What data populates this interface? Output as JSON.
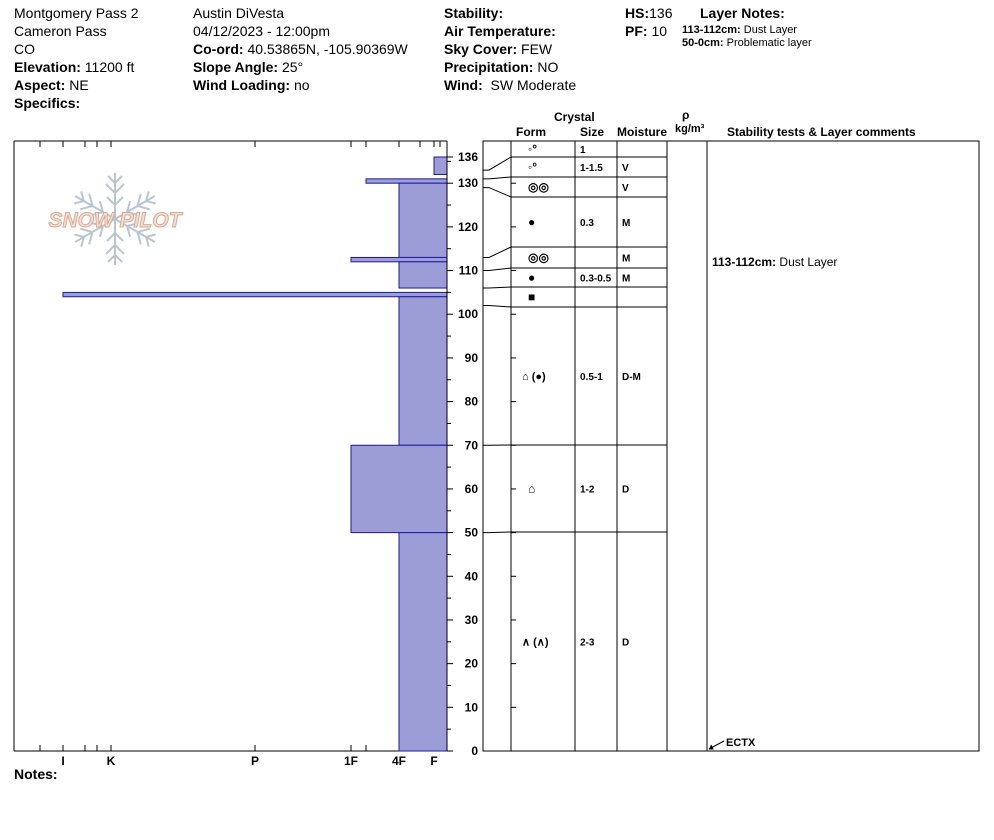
{
  "site": {
    "name": "Montgomery Pass 2",
    "area": "Cameron Pass",
    "state": "CO",
    "elevation_label": "Elevation:",
    "elevation": "11200 ft",
    "aspect_label": "Aspect:",
    "aspect": "NE",
    "specifics_label": "Specifics:"
  },
  "obs": {
    "observer": "Austin DiVesta",
    "datetime": "04/12/2023 - 12:00pm",
    "coord_label": "Co-ord:",
    "coord": "40.53865N, -105.90369W",
    "slope_label": "Slope Angle:",
    "slope": "25°",
    "wind_loading_label": "Wind Loading:",
    "wind_loading": "no"
  },
  "weather": {
    "stability_label": "Stability:",
    "air_temp_label": "Air Temperature:",
    "sky_label": "Sky Cover:",
    "sky": "FEW",
    "precip_label": "Precipitation:",
    "precip": "NO",
    "wind_label": "Wind:",
    "wind": "SW Moderate"
  },
  "snowpack": {
    "hs_label": "HS:",
    "hs": "136",
    "pf_label": "PF:",
    "pf": "10",
    "layer_notes_label": "Layer Notes:",
    "layer_notes": [
      {
        "range": "113-112cm:",
        "text": "Dust Layer"
      },
      {
        "range": "50-0cm:",
        "text": "Problematic layer"
      }
    ]
  },
  "table_headers": {
    "crystal": "Crystal",
    "form": "Form",
    "size": "Size",
    "moisture": "Moisture",
    "rho": "ρ",
    "density_unit": "kg/m³",
    "comments": "Stability tests & Layer comments"
  },
  "logo_text": "SNOW PILOT",
  "notes_label": "Notes:",
  "colors": {
    "hardness_fill": "#9c9cd6",
    "hardness_stroke": "#1a1aa0"
  },
  "chart_data": {
    "type": "bar",
    "orientation": "horizontal",
    "x_categories": [
      "I",
      "K",
      "P",
      "1F",
      "4F",
      "F"
    ],
    "ylim": [
      0,
      136
    ],
    "y_ticks": [
      0,
      10,
      20,
      30,
      40,
      50,
      60,
      70,
      80,
      90,
      100,
      110,
      120,
      130,
      136
    ],
    "hardness_layers": [
      {
        "bottom": 132,
        "top": 136,
        "hardness": "F"
      },
      {
        "bottom": 130,
        "top": 131,
        "hardness": "1F+"
      },
      {
        "bottom": 113,
        "top": 130,
        "hardness": "4F"
      },
      {
        "bottom": 112,
        "top": 113,
        "hardness": "1F"
      },
      {
        "bottom": 106,
        "top": 112,
        "hardness": "4F"
      },
      {
        "bottom": 104,
        "top": 105,
        "hardness": "I"
      },
      {
        "bottom": 70,
        "top": 104,
        "hardness": "4F"
      },
      {
        "bottom": 50,
        "top": 70,
        "hardness": "1F"
      },
      {
        "bottom": 0,
        "top": 50,
        "hardness": "4F"
      }
    ],
    "layers": [
      {
        "top": 136,
        "bottom": 133,
        "form": "◦°",
        "size": "1",
        "moisture": ""
      },
      {
        "top": 133,
        "bottom": 131,
        "form": "◦°",
        "size": "1-1.5",
        "moisture": "V"
      },
      {
        "top": 131,
        "bottom": 129,
        "form": "◎◎",
        "size": "",
        "moisture": "V"
      },
      {
        "top": 129,
        "bottom": 113,
        "form": "●",
        "size": "0.3",
        "moisture": "M"
      },
      {
        "top": 113,
        "bottom": 110,
        "form": "◎◎",
        "size": "",
        "moisture": "M"
      },
      {
        "top": 110,
        "bottom": 106,
        "form": "●",
        "size": "0.3-0.5",
        "moisture": "M"
      },
      {
        "top": 106,
        "bottom": 102,
        "form": "■",
        "size": "",
        "moisture": ""
      },
      {
        "top": 102,
        "bottom": 70,
        "form": "⌂ (●)",
        "size": "0.5-1",
        "moisture": "D-M"
      },
      {
        "top": 70,
        "bottom": 50,
        "form": "⌂",
        "size": "1-2",
        "moisture": "D"
      },
      {
        "top": 50,
        "bottom": 0,
        "form": "∧ (∧)",
        "size": "2-3",
        "moisture": "D"
      }
    ],
    "layer_comments": [
      {
        "depth": 112,
        "range": "113-112cm:",
        "text": "Dust Layer"
      }
    ],
    "stability_tests": [
      {
        "depth": 0,
        "text": "ECTX"
      }
    ]
  }
}
